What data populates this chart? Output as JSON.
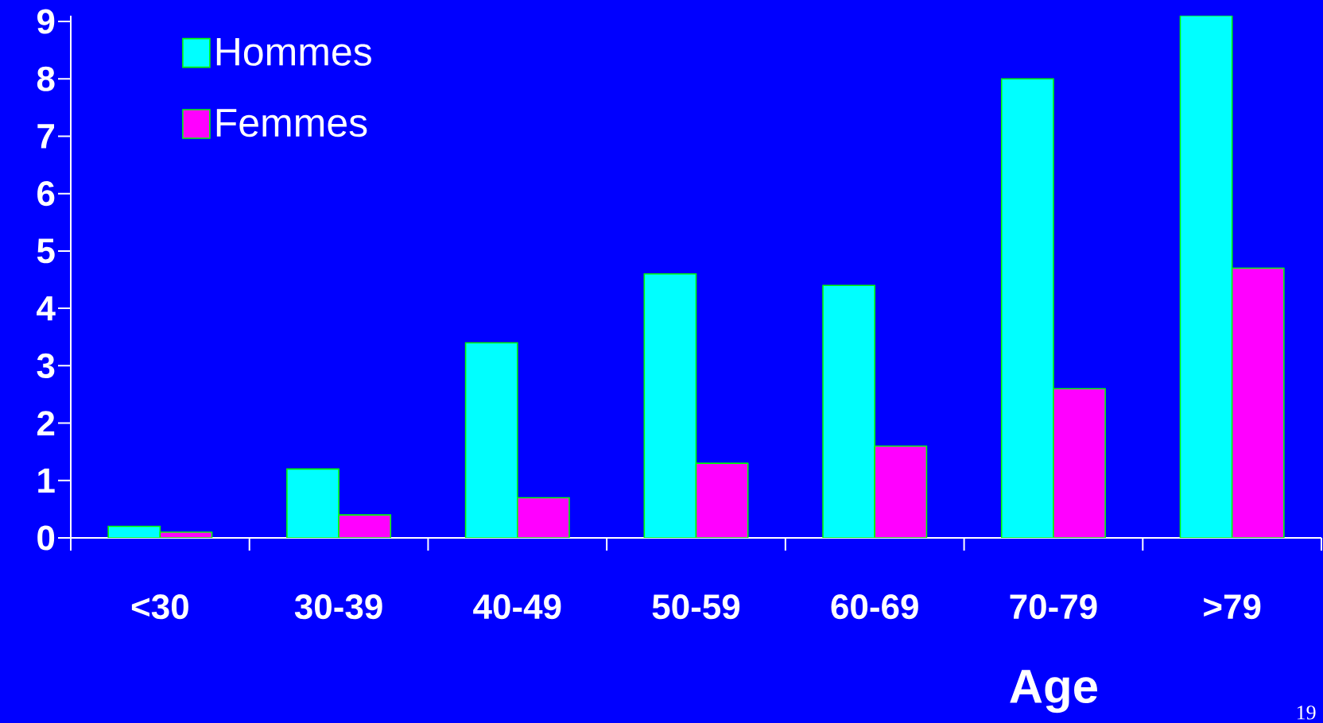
{
  "chart_data": {
    "type": "bar",
    "xlabel": "Age",
    "categories": [
      "<30",
      "30-39",
      "40-49",
      "50-59",
      "60-69",
      "70-79",
      ">79"
    ],
    "series": [
      {
        "name": "Hommes",
        "color": "#00ffff",
        "values": [
          0.2,
          1.2,
          3.4,
          4.6,
          4.4,
          8.0,
          9.1
        ]
      },
      {
        "name": "Femmes",
        "color": "#ff00ff",
        "values": [
          0.1,
          0.4,
          0.7,
          1.3,
          1.6,
          2.6,
          4.7
        ]
      }
    ],
    "ylim": [
      0,
      9.1
    ],
    "yticks": [
      0,
      1,
      2,
      3,
      4,
      5,
      6,
      7,
      8,
      9
    ],
    "legend": "top left",
    "grid": false,
    "annotations": [
      "19"
    ]
  }
}
